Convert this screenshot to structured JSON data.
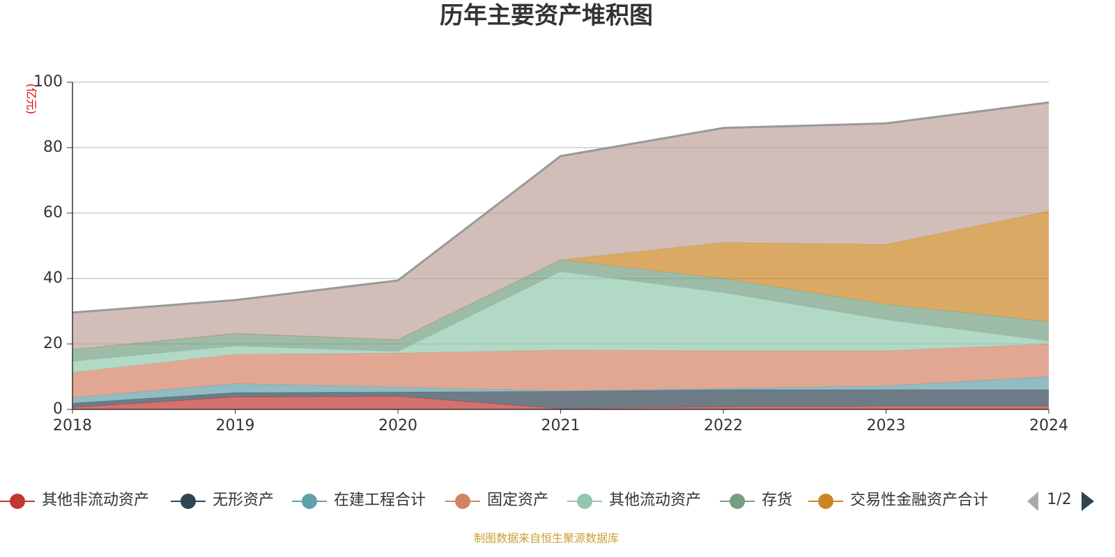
{
  "chart_data": {
    "type": "stacked_area",
    "title": "历年主要资产堆积图",
    "y_axis_label": "(亿元)",
    "categories": [
      "2018",
      "2019",
      "2020",
      "2021",
      "2022",
      "2023",
      "2024"
    ],
    "ylim": [
      0,
      100
    ],
    "yticks": [
      0,
      20,
      40,
      60,
      80,
      100
    ],
    "grid": true,
    "series": [
      {
        "name": "其他非流动资产",
        "color": "#c23531",
        "values": [
          0.6,
          3.8,
          4.0,
          0.2,
          0.8,
          1.0,
          1.0
        ]
      },
      {
        "name": "无形资产",
        "color": "#2f4554",
        "values": [
          1.3,
          1.3,
          1.3,
          5.3,
          5.2,
          5.0,
          5.0
        ]
      },
      {
        "name": "在建工程合计",
        "color": "#61a0a8",
        "values": [
          1.7,
          2.8,
          1.5,
          0.2,
          0.4,
          1.2,
          4.0
        ]
      },
      {
        "name": "固定资产",
        "color": "#d48265",
        "values": [
          7.7,
          8.9,
          10.4,
          12.4,
          11.5,
          10.7,
          10.0
        ]
      },
      {
        "name": "其他流动资产",
        "color": "#91c7ae",
        "values": [
          3.4,
          2.6,
          0.5,
          24.0,
          17.8,
          9.5,
          0.9
        ]
      },
      {
        "name": "存货",
        "color": "#749f83",
        "values": [
          3.6,
          3.8,
          3.6,
          3.6,
          4.3,
          4.7,
          5.9
        ]
      },
      {
        "name": "交易性金融资产合计",
        "color": "#ca8622",
        "values": [
          0,
          0,
          0,
          0,
          11.0,
          18.3,
          33.8
        ]
      },
      {
        "name": null,
        "color": "#bda29a",
        "values": [
          11.3,
          10.2,
          18.1,
          31.7,
          35.0,
          37.0,
          33.2
        ]
      }
    ],
    "legend_page": "1/2",
    "source": "制图数据来自恒生聚源数据库"
  }
}
